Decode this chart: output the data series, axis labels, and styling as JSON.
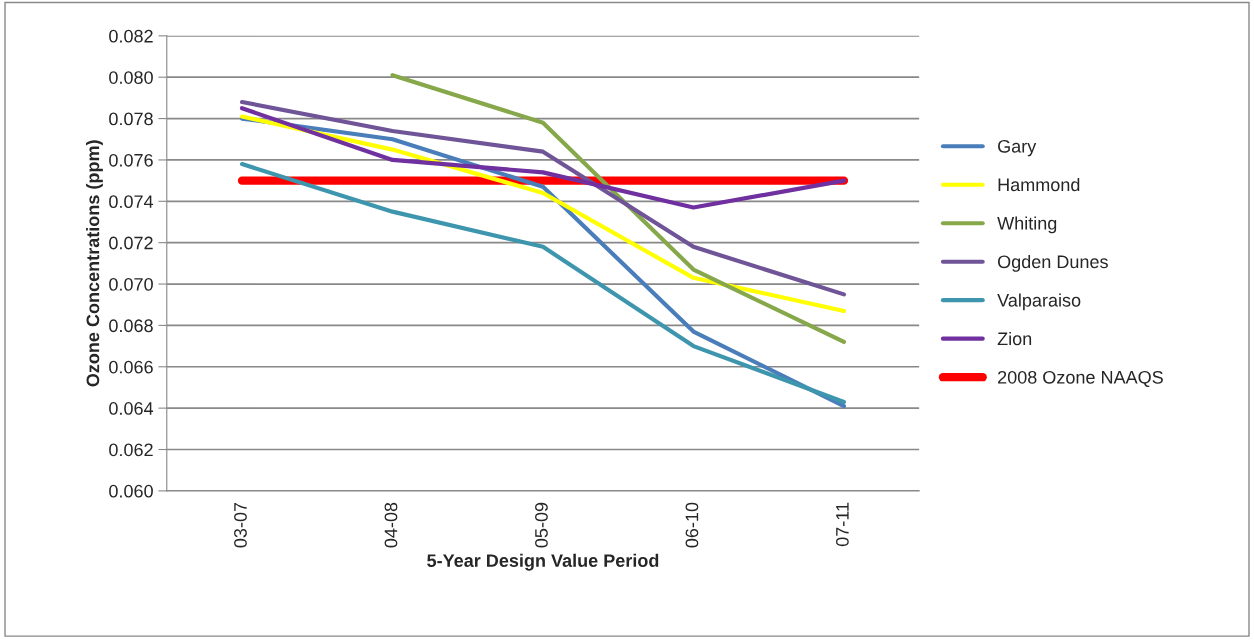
{
  "chart_data": {
    "type": "line",
    "xlabel": "5-Year Design Value Period",
    "ylabel": "Ozone Concentrations (ppm)",
    "categories": [
      "03-07",
      "04-08",
      "05-09",
      "06-10",
      "07-11"
    ],
    "series": [
      {
        "name": "Gary",
        "color": "#4a7ebb",
        "values": [
          0.078,
          0.077,
          0.0747,
          0.0677,
          0.0641
        ]
      },
      {
        "name": "Hammond",
        "color": "#ffff00",
        "values": [
          0.0781,
          0.0765,
          0.0744,
          0.0703,
          0.0687
        ]
      },
      {
        "name": "Whiting",
        "color": "#86a84a",
        "values": [
          null,
          0.0801,
          0.0778,
          0.0707,
          0.0672
        ]
      },
      {
        "name": "Ogden Dunes",
        "color": "#6f5597",
        "values": [
          0.0788,
          0.0774,
          0.0764,
          0.0718,
          0.0695
        ]
      },
      {
        "name": "Valparaiso",
        "color": "#3d96ae",
        "values": [
          0.0758,
          0.0735,
          0.0718,
          0.067,
          0.0643
        ]
      },
      {
        "name": "Zion",
        "color": "#7030a0",
        "values": [
          0.0785,
          0.076,
          0.0754,
          0.0737,
          0.075
        ]
      },
      {
        "name": "2008 Ozone NAAQS",
        "color": "#ff0000",
        "values": [
          0.075,
          0.075,
          0.075,
          0.075,
          0.075
        ]
      }
    ],
    "ylim": [
      0.06,
      0.082
    ],
    "yticks": [
      {
        "value": 0.06,
        "label": "0.060"
      },
      {
        "value": 0.062,
        "label": "0.062"
      },
      {
        "value": 0.064,
        "label": "0.064"
      },
      {
        "value": 0.066,
        "label": "0.066"
      },
      {
        "value": 0.068,
        "label": "0.068"
      },
      {
        "value": 0.07,
        "label": "0.070"
      },
      {
        "value": 0.072,
        "label": "0.072"
      },
      {
        "value": 0.074,
        "label": "0.074"
      },
      {
        "value": 0.076,
        "label": "0.076"
      },
      {
        "value": 0.078,
        "label": "0.078"
      },
      {
        "value": 0.08,
        "label": "0.080"
      },
      {
        "value": 0.082,
        "label": "0.082"
      }
    ],
    "grid": "y",
    "legend": "right",
    "marker": "none",
    "line_style": "solid"
  }
}
